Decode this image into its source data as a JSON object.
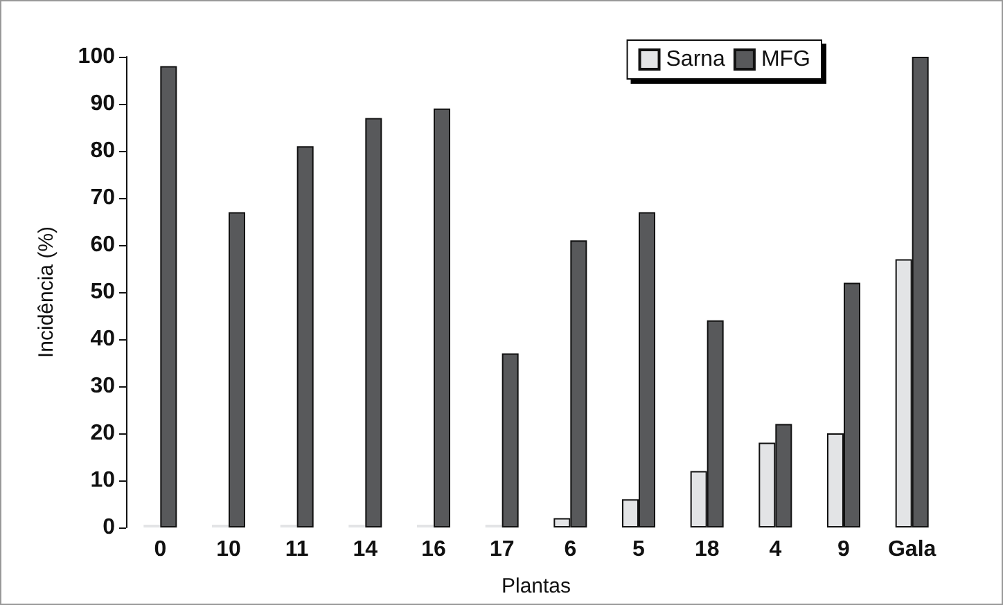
{
  "chart_data": {
    "type": "bar",
    "xlabel": "Plantas",
    "ylabel": "Incidência (%)",
    "categories": [
      "0",
      "10",
      "11",
      "14",
      "16",
      "17",
      "6",
      "5",
      "18",
      "4",
      "9",
      "Gala"
    ],
    "series": [
      {
        "name": "Sarna",
        "color": "#e3e4e6",
        "values": [
          0,
          0,
          0,
          0,
          0,
          0,
          2,
          6,
          12,
          18,
          20,
          57
        ]
      },
      {
        "name": "MFG",
        "color": "#58595b",
        "values": [
          98,
          67,
          81,
          87,
          89,
          37,
          61,
          67,
          44,
          22,
          52,
          100
        ]
      }
    ],
    "ylim": [
      0,
      100
    ],
    "yticks": [
      0,
      10,
      20,
      30,
      40,
      50,
      60,
      70,
      80,
      90,
      100
    ],
    "grid": false,
    "legend": "top right"
  }
}
